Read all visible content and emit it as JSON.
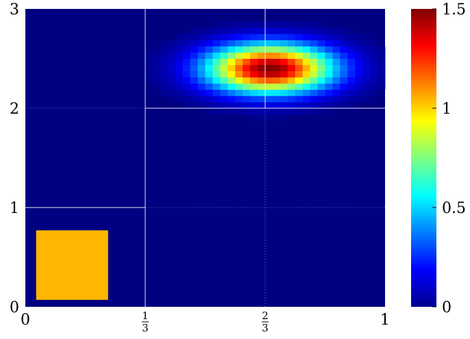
{
  "chart_data": {
    "type": "heatmap",
    "title": "",
    "xlabel": "",
    "ylabel": "",
    "xlim": [
      0,
      1
    ],
    "ylim": [
      0,
      3
    ],
    "grid": "white lines at x = 1/3 and x = 2/3 and at y = 1 and y = 2",
    "x_ticks": [
      {
        "value": 0,
        "label": "0"
      },
      {
        "value": 0.3333,
        "numerator": "1",
        "denominator": "3"
      },
      {
        "value": 0.6667,
        "numerator": "2",
        "denominator": "3"
      },
      {
        "value": 1,
        "label": "1"
      }
    ],
    "y_ticks": [
      {
        "value": 0,
        "label": "0"
      },
      {
        "value": 1,
        "label": "1"
      },
      {
        "value": 2,
        "label": "2"
      },
      {
        "value": 3,
        "label": "3"
      }
    ],
    "colormap": "jet",
    "background_value": 0,
    "hotspot": {
      "center_x": 0.68,
      "center_y": 2.4,
      "peak_value": 1.5,
      "sigma_x": 0.12,
      "sigma_y": 0.17
    },
    "rectangle": {
      "x0": 0.03,
      "x1": 0.23,
      "y0": 0.07,
      "y1": 0.77,
      "value": 0.85,
      "color": "#FFB600"
    },
    "colorbar": {
      "range": [
        0,
        1.5
      ],
      "ticks": [
        {
          "value": 0,
          "label": "0"
        },
        {
          "value": 0.5,
          "label": "0.5"
        },
        {
          "value": 1,
          "label": "1"
        },
        {
          "value": 1.5,
          "label": "1.5"
        }
      ]
    }
  }
}
